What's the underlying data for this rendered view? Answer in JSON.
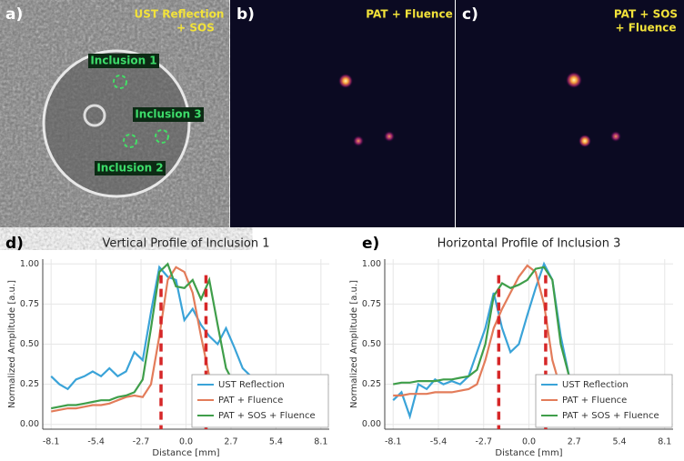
{
  "panels": [
    {
      "label": "a)",
      "title": [
        "UST Reflection",
        "+ SOS"
      ],
      "inclusions": [
        "Inclusion 1",
        "Inclusion 3",
        "Inclusion 2"
      ]
    },
    {
      "label": "b)",
      "title": [
        "PAT + Fluence"
      ]
    },
    {
      "label": "c)",
      "title": [
        "PAT + SOS",
        "+ Fluence"
      ]
    }
  ],
  "chart_data": [
    {
      "type": "line",
      "panel_label": "d)",
      "title": "Vertical Profile of Inclusion 1",
      "x_label": "Distance [mm]",
      "y_label": "Normalized Amplitude [a.u.]",
      "x": [
        -8.1,
        -7.6,
        -7.1,
        -6.6,
        -6.1,
        -5.6,
        -5.1,
        -4.6,
        -4.1,
        -3.6,
        -3.1,
        -2.6,
        -2.1,
        -1.6,
        -1.1,
        -0.6,
        -0.1,
        0.4,
        0.9,
        1.4,
        1.9,
        2.4,
        2.9,
        3.4,
        3.9,
        4.4,
        4.9,
        5.4,
        5.9,
        6.4,
        6.9,
        7.4,
        7.9
      ],
      "series": [
        {
          "name": "UST Reflection",
          "color": "#3aa3d8",
          "values": [
            0.3,
            0.25,
            0.22,
            0.28,
            0.3,
            0.33,
            0.3,
            0.35,
            0.3,
            0.33,
            0.45,
            0.4,
            0.7,
            0.98,
            0.92,
            0.9,
            0.65,
            0.72,
            0.62,
            0.55,
            0.5,
            0.6,
            0.48,
            0.35,
            0.3,
            0.25,
            0.22,
            0.2,
            0.2,
            0.18,
            0.17,
            0.17,
            0.17
          ]
        },
        {
          "name": "PAT + Fluence",
          "color": "#e37c5a",
          "values": [
            0.08,
            0.09,
            0.1,
            0.1,
            0.11,
            0.12,
            0.12,
            0.13,
            0.15,
            0.17,
            0.18,
            0.17,
            0.25,
            0.55,
            0.9,
            0.98,
            0.95,
            0.82,
            0.55,
            0.3,
            0.18,
            0.15,
            0.15,
            0.15,
            0.15,
            0.15,
            0.15,
            0.15,
            0.15,
            0.15,
            0.15,
            0.15,
            0.15
          ]
        },
        {
          "name": "PAT + SOS + Fluence",
          "color": "#3f9e4a",
          "values": [
            0.1,
            0.11,
            0.12,
            0.12,
            0.13,
            0.14,
            0.15,
            0.15,
            0.17,
            0.18,
            0.2,
            0.28,
            0.6,
            0.95,
            1.0,
            0.86,
            0.85,
            0.9,
            0.78,
            0.9,
            0.62,
            0.35,
            0.25,
            0.2,
            0.18,
            0.17,
            0.17,
            0.16,
            0.16,
            0.16,
            0.15,
            0.15,
            0.15
          ]
        }
      ],
      "markers": [
        -1.5,
        1.2
      ],
      "marker_color": "#d62728",
      "xlim": [
        -8.6,
        8.6
      ],
      "ylim": [
        -0.03,
        1.03
      ],
      "xticks": [
        -8.1,
        -5.4,
        -2.7,
        {
          "value": 0,
          "label": "0.0"
        },
        2.7,
        5.4,
        8.1
      ],
      "yticks": [
        {
          "value": 0,
          "label": "0.00"
        },
        0.25,
        {
          "value": 0.5,
          "label": "0.50"
        },
        0.75,
        {
          "value": 1,
          "label": "1.00"
        }
      ],
      "grid": true,
      "legend": "lower right"
    },
    {
      "type": "line",
      "panel_label": "e)",
      "title": "Horizontal Profile of Inclusion 3",
      "x_label": "Distance [mm]",
      "y_label": "Normalized Amplitude [a.u.]",
      "x": [
        -8.1,
        -7.6,
        -7.1,
        -6.6,
        -6.1,
        -5.6,
        -5.1,
        -4.6,
        -4.1,
        -3.6,
        -3.1,
        -2.6,
        -2.1,
        -1.6,
        -1.1,
        -0.6,
        -0.1,
        0.4,
        0.9,
        1.4,
        1.9,
        2.4,
        2.9,
        3.4,
        3.9,
        4.4,
        4.9,
        5.4,
        5.9,
        6.4,
        6.9,
        7.4,
        7.9
      ],
      "series": [
        {
          "name": "UST Reflection",
          "color": "#3aa3d8",
          "values": [
            0.15,
            0.2,
            0.05,
            0.25,
            0.22,
            0.28,
            0.25,
            0.27,
            0.25,
            0.3,
            0.45,
            0.6,
            0.82,
            0.6,
            0.45,
            0.5,
            0.68,
            0.85,
            1.0,
            0.9,
            0.55,
            0.3,
            0.3,
            0.28,
            0.25,
            0.22,
            0.2,
            0.2,
            0.2,
            0.2,
            0.2,
            0.2,
            0.22
          ]
        },
        {
          "name": "PAT + Fluence",
          "color": "#e37c5a",
          "values": [
            0.18,
            0.18,
            0.19,
            0.19,
            0.19,
            0.2,
            0.2,
            0.2,
            0.21,
            0.22,
            0.25,
            0.4,
            0.6,
            0.72,
            0.82,
            0.92,
            0.99,
            0.95,
            0.75,
            0.4,
            0.22,
            0.2,
            0.2,
            0.2,
            0.2,
            0.2,
            0.2,
            0.2,
            0.2,
            0.2,
            0.2,
            0.2,
            0.2
          ]
        },
        {
          "name": "PAT + SOS + Fluence",
          "color": "#3f9e4a",
          "values": [
            0.25,
            0.26,
            0.26,
            0.27,
            0.27,
            0.27,
            0.28,
            0.28,
            0.29,
            0.3,
            0.34,
            0.5,
            0.8,
            0.88,
            0.85,
            0.87,
            0.9,
            0.97,
            0.98,
            0.9,
            0.5,
            0.3,
            0.25,
            0.24,
            0.23,
            0.22,
            0.22,
            0.22,
            0.22,
            0.22,
            0.22,
            0.22,
            0.22
          ]
        }
      ],
      "markers": [
        -1.8,
        1.0
      ],
      "marker_color": "#d62728",
      "xlim": [
        -8.6,
        8.6
      ],
      "ylim": [
        -0.03,
        1.03
      ],
      "xticks": [
        -8.1,
        -5.4,
        -2.7,
        {
          "value": 0,
          "label": "0.0"
        },
        2.7,
        5.4,
        8.1
      ],
      "yticks": [
        {
          "value": 0,
          "label": "0.00"
        },
        0.25,
        {
          "value": 0.5,
          "label": "0.50"
        },
        0.75,
        {
          "value": 1,
          "label": "1.00"
        }
      ],
      "grid": true,
      "legend": "lower right"
    }
  ]
}
